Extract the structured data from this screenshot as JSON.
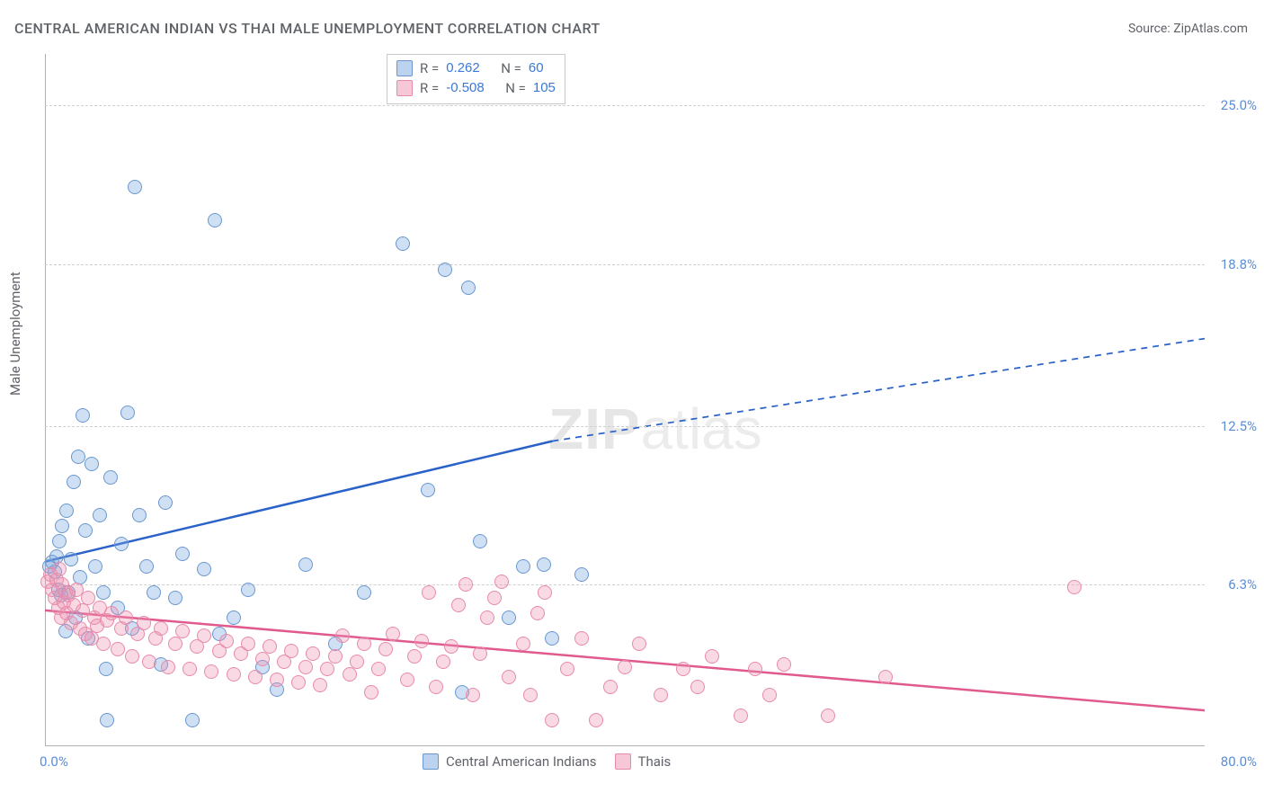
{
  "title": "CENTRAL AMERICAN INDIAN VS THAI MALE UNEMPLOYMENT CORRELATION CHART",
  "source": "Source: ZipAtlas.com",
  "ylabel": "Male Unemployment",
  "watermark_zip": "ZIP",
  "watermark_atlas": "atlas",
  "chart": {
    "type": "scatter",
    "xlim": [
      0,
      80
    ],
    "ylim": [
      0,
      27
    ],
    "x_left_label": "0.0%",
    "x_right_label": "80.0%",
    "y_ticks": [
      {
        "v": 6.3,
        "label": "6.3%"
      },
      {
        "v": 12.5,
        "label": "12.5%"
      },
      {
        "v": 18.8,
        "label": "18.8%"
      },
      {
        "v": 25.0,
        "label": "25.0%"
      }
    ],
    "grid_color": "#d0d0d0",
    "axis_color": "#b0b0b0",
    "background_color": "#ffffff",
    "marker_radius": 7,
    "series": [
      {
        "name": "Central American Indians",
        "key": "blue",
        "fill": "rgba(120,167,224,0.35)",
        "stroke": "#6a97cf",
        "reg_color": "#2a62c9",
        "reg_width": 2.5,
        "R": "0.262",
        "N": "60",
        "regression": {
          "x1": 0,
          "y1": 7.2,
          "x2": 35,
          "y2": 11.9,
          "x2_dash": 80,
          "y2_dash": 15.9
        },
        "points": [
          [
            0.3,
            7.0
          ],
          [
            0.5,
            7.2
          ],
          [
            0.7,
            6.8
          ],
          [
            0.8,
            7.4
          ],
          [
            0.9,
            6.1
          ],
          [
            1.0,
            8.0
          ],
          [
            1.1,
            5.9
          ],
          [
            1.2,
            8.6
          ],
          [
            1.4,
            4.5
          ],
          [
            1.5,
            9.2
          ],
          [
            1.6,
            6.0
          ],
          [
            1.8,
            7.3
          ],
          [
            2.0,
            10.3
          ],
          [
            2.1,
            5.0
          ],
          [
            2.3,
            11.3
          ],
          [
            2.4,
            6.6
          ],
          [
            2.6,
            12.9
          ],
          [
            2.8,
            8.4
          ],
          [
            3.0,
            4.2
          ],
          [
            3.2,
            11.0
          ],
          [
            3.5,
            7.0
          ],
          [
            3.8,
            9.0
          ],
          [
            4.0,
            6.0
          ],
          [
            4.2,
            3.0
          ],
          [
            4.3,
            1.0
          ],
          [
            4.5,
            10.5
          ],
          [
            5.0,
            5.4
          ],
          [
            5.3,
            7.9
          ],
          [
            5.7,
            13.0
          ],
          [
            6.0,
            4.6
          ],
          [
            6.2,
            21.8
          ],
          [
            6.5,
            9.0
          ],
          [
            7.0,
            7.0
          ],
          [
            7.5,
            6.0
          ],
          [
            8.0,
            3.2
          ],
          [
            8.3,
            9.5
          ],
          [
            9.0,
            5.8
          ],
          [
            9.5,
            7.5
          ],
          [
            10.2,
            1.0
          ],
          [
            11.7,
            20.5
          ],
          [
            11.0,
            6.9
          ],
          [
            12.0,
            4.4
          ],
          [
            13.0,
            5.0
          ],
          [
            14.0,
            6.1
          ],
          [
            15.0,
            3.1
          ],
          [
            16.0,
            2.2
          ],
          [
            18.0,
            7.1
          ],
          [
            20.0,
            4.0
          ],
          [
            22.0,
            6.0
          ],
          [
            24.7,
            19.6
          ],
          [
            26.4,
            10.0
          ],
          [
            27.6,
            18.6
          ],
          [
            28.8,
            2.1
          ],
          [
            29.2,
            17.9
          ],
          [
            30.0,
            8.0
          ],
          [
            32.0,
            5.0
          ],
          [
            33.0,
            7.0
          ],
          [
            34.4,
            7.1
          ],
          [
            35.0,
            4.2
          ],
          [
            37.0,
            6.7
          ]
        ]
      },
      {
        "name": "Thais",
        "key": "pink",
        "fill": "rgba(238,145,175,0.35)",
        "stroke": "#e78aab",
        "reg_color": "#e05a8e",
        "reg_width": 2.5,
        "R": "-0.508",
        "N": "105",
        "regression": {
          "x1": 0,
          "y1": 5.3,
          "x2": 80,
          "y2": 1.4
        },
        "points": [
          [
            0.2,
            6.4
          ],
          [
            0.4,
            6.7
          ],
          [
            0.5,
            6.1
          ],
          [
            0.7,
            5.8
          ],
          [
            0.8,
            6.5
          ],
          [
            0.9,
            5.4
          ],
          [
            1.0,
            6.9
          ],
          [
            1.1,
            5.0
          ],
          [
            1.2,
            6.3
          ],
          [
            1.3,
            5.6
          ],
          [
            1.4,
            6.0
          ],
          [
            1.5,
            5.2
          ],
          [
            1.6,
            5.9
          ],
          [
            1.8,
            4.8
          ],
          [
            2.0,
            5.5
          ],
          [
            2.2,
            6.1
          ],
          [
            2.4,
            4.6
          ],
          [
            2.6,
            5.3
          ],
          [
            2.8,
            4.4
          ],
          [
            3.0,
            5.8
          ],
          [
            3.2,
            4.2
          ],
          [
            3.4,
            5.0
          ],
          [
            3.6,
            4.7
          ],
          [
            3.8,
            5.4
          ],
          [
            4.0,
            4.0
          ],
          [
            4.3,
            4.9
          ],
          [
            4.6,
            5.2
          ],
          [
            5.0,
            3.8
          ],
          [
            5.3,
            4.6
          ],
          [
            5.6,
            5.0
          ],
          [
            6.0,
            3.5
          ],
          [
            6.4,
            4.4
          ],
          [
            6.8,
            4.8
          ],
          [
            7.2,
            3.3
          ],
          [
            7.6,
            4.2
          ],
          [
            8.0,
            4.6
          ],
          [
            8.5,
            3.1
          ],
          [
            9.0,
            4.0
          ],
          [
            9.5,
            4.5
          ],
          [
            10.0,
            3.0
          ],
          [
            10.5,
            3.9
          ],
          [
            11.0,
            4.3
          ],
          [
            11.5,
            2.9
          ],
          [
            12.0,
            3.7
          ],
          [
            12.5,
            4.1
          ],
          [
            13.0,
            2.8
          ],
          [
            13.5,
            3.6
          ],
          [
            14.0,
            4.0
          ],
          [
            14.5,
            2.7
          ],
          [
            15.0,
            3.4
          ],
          [
            15.5,
            3.9
          ],
          [
            16.0,
            2.6
          ],
          [
            16.5,
            3.3
          ],
          [
            17.0,
            3.7
          ],
          [
            17.5,
            2.5
          ],
          [
            18.0,
            3.1
          ],
          [
            18.5,
            3.6
          ],
          [
            19.0,
            2.4
          ],
          [
            19.5,
            3.0
          ],
          [
            20.0,
            3.5
          ],
          [
            20.5,
            4.3
          ],
          [
            21.0,
            2.8
          ],
          [
            21.5,
            3.3
          ],
          [
            22.0,
            4.0
          ],
          [
            22.5,
            2.1
          ],
          [
            23.0,
            3.0
          ],
          [
            23.5,
            3.8
          ],
          [
            24.0,
            4.4
          ],
          [
            25.0,
            2.6
          ],
          [
            25.5,
            3.5
          ],
          [
            26.0,
            4.1
          ],
          [
            26.5,
            6.0
          ],
          [
            27.0,
            2.3
          ],
          [
            27.5,
            3.3
          ],
          [
            28.0,
            3.9
          ],
          [
            28.5,
            5.5
          ],
          [
            29.0,
            6.3
          ],
          [
            29.5,
            2.0
          ],
          [
            30.0,
            3.6
          ],
          [
            30.5,
            5.0
          ],
          [
            31.0,
            5.8
          ],
          [
            31.5,
            6.4
          ],
          [
            32.0,
            2.7
          ],
          [
            33.0,
            4.0
          ],
          [
            33.5,
            2.0
          ],
          [
            34.0,
            5.2
          ],
          [
            34.5,
            6.0
          ],
          [
            35.0,
            1.0
          ],
          [
            36.0,
            3.0
          ],
          [
            37.0,
            4.2
          ],
          [
            38.0,
            1.0
          ],
          [
            39.0,
            2.3
          ],
          [
            40.0,
            3.1
          ],
          [
            41.0,
            4.0
          ],
          [
            42.5,
            2.0
          ],
          [
            44.0,
            3.0
          ],
          [
            45.0,
            2.3
          ],
          [
            46.0,
            3.5
          ],
          [
            48.0,
            1.2
          ],
          [
            49.0,
            3.0
          ],
          [
            50.0,
            2.0
          ],
          [
            51.0,
            3.2
          ],
          [
            54.0,
            1.2
          ],
          [
            58.0,
            2.7
          ],
          [
            71.0,
            6.2
          ]
        ]
      }
    ]
  },
  "bottom_legend": [
    {
      "swatch": "blue",
      "label": "Central American Indians"
    },
    {
      "swatch": "pink",
      "label": "Thais"
    }
  ],
  "stats_labels": {
    "R": "R =",
    "N": "N ="
  }
}
